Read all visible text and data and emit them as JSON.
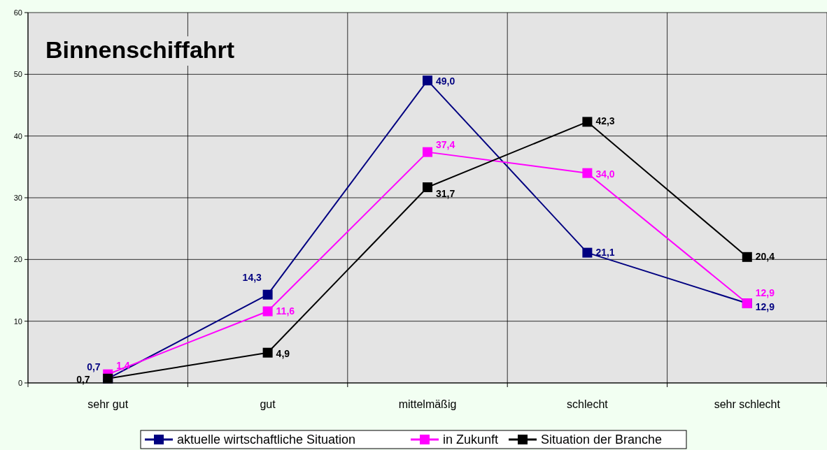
{
  "chart_data": {
    "type": "line",
    "title": "Binnenschiffahrt",
    "categories": [
      "sehr gut",
      "gut",
      "mittelmäßig",
      "schlecht",
      "sehr schlecht"
    ],
    "series": [
      {
        "name": "aktuelle wirtschaftliche Situation",
        "color": "#000080",
        "values": [
          0.7,
          14.3,
          49.0,
          21.1,
          12.9
        ],
        "value_labels": [
          "0,7",
          "14,3",
          "49,0",
          "21,1",
          "12,9"
        ]
      },
      {
        "name": "in Zukunft",
        "color": "#ff00ff",
        "values": [
          1.4,
          11.6,
          37.4,
          34.0,
          12.9
        ],
        "value_labels": [
          "1,4",
          "11,6",
          "37,4",
          "34,0",
          "12,9"
        ]
      },
      {
        "name": "Situation der Branche",
        "color": "#000000",
        "values": [
          0.7,
          4.9,
          31.7,
          42.3,
          20.4
        ],
        "value_labels": [
          "0,7",
          "4,9",
          "31,7",
          "42,3",
          "20,4"
        ]
      }
    ],
    "ylim": [
      0,
      60
    ],
    "yticks": [
      0,
      10,
      20,
      30,
      40,
      50,
      60
    ],
    "grid": true,
    "legend": "bottom",
    "marker": "square",
    "line_style": "solid"
  }
}
